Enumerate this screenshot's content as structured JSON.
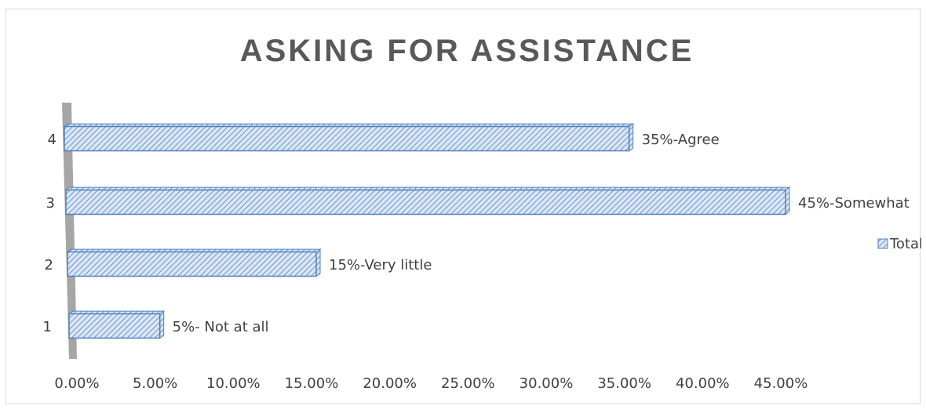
{
  "chart_data": {
    "type": "bar",
    "orientation": "horizontal",
    "title": "ASKING FOR ASSISTANCE",
    "categories": [
      "1",
      "2",
      "3",
      "4"
    ],
    "series": [
      {
        "name": "Total",
        "values": [
          0.05,
          0.15,
          0.45,
          0.35
        ]
      }
    ],
    "data_labels": [
      "5%- Not at all",
      "15%-Very little",
      "45%-Somewhat",
      "35%-Agree"
    ],
    "x_ticks": [
      "0.00%",
      "5.00%",
      "10.00%",
      "15.00%",
      "20.00%",
      "25.00%",
      "30.00%",
      "35.00%",
      "40.00%",
      "45.00%"
    ],
    "xlim": [
      0,
      0.45
    ],
    "legend_position": "right",
    "grid": false,
    "style": "3d-hatched",
    "colors": {
      "bar_fill": "#dae6f5",
      "bar_stroke": "#4f81bd",
      "hatch": "#4f81bd",
      "wall": "#a6a6a6"
    }
  }
}
